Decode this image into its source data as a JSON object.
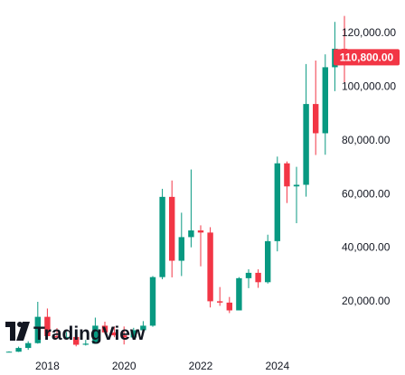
{
  "chart_data": {
    "type": "candlestick",
    "interval": "quarterly",
    "y_scale": "linear",
    "ylim": [
      0,
      127000
    ],
    "y_ticks": [
      20000,
      40000,
      60000,
      80000,
      100000,
      120000
    ],
    "y_tick_labels": [
      "20,000.00",
      "40,000.00",
      "60,000.00",
      "80,000.00",
      "100,000.00",
      "120,000.00"
    ],
    "x_ticks": [
      2018,
      2020,
      2022,
      2024
    ],
    "x_tick_labels": [
      "2018",
      "2020",
      "2022",
      "2024"
    ],
    "grid": false,
    "up_color": "#089981",
    "down_color": "#f23645",
    "last_price": 110800,
    "last_price_label": "110,800.00",
    "candles": [
      {
        "t": 2017.0,
        "o": 970,
        "h": 1250,
        "l": 900,
        "c": 1100
      },
      {
        "t": 2017.25,
        "o": 1100,
        "h": 3000,
        "l": 1000,
        "c": 2500
      },
      {
        "t": 2017.5,
        "o": 2500,
        "h": 5000,
        "l": 1800,
        "c": 4300
      },
      {
        "t": 2017.75,
        "o": 4300,
        "h": 19700,
        "l": 4100,
        "c": 14100
      },
      {
        "t": 2018.0,
        "o": 14100,
        "h": 17200,
        "l": 6000,
        "c": 6900
      },
      {
        "t": 2018.25,
        "o": 6900,
        "h": 9900,
        "l": 5800,
        "c": 6400
      },
      {
        "t": 2018.5,
        "o": 6400,
        "h": 8500,
        "l": 6000,
        "c": 6600
      },
      {
        "t": 2018.75,
        "o": 6600,
        "h": 6700,
        "l": 3100,
        "c": 3700
      },
      {
        "t": 2019.0,
        "o": 3700,
        "h": 5500,
        "l": 3400,
        "c": 4100
      },
      {
        "t": 2019.25,
        "o": 4100,
        "h": 13800,
        "l": 4100,
        "c": 10800
      },
      {
        "t": 2019.5,
        "o": 10800,
        "h": 12300,
        "l": 7700,
        "c": 8300
      },
      {
        "t": 2019.75,
        "o": 8300,
        "h": 10500,
        "l": 6500,
        "c": 7200
      },
      {
        "t": 2020.0,
        "o": 7200,
        "h": 10500,
        "l": 3800,
        "c": 6400
      },
      {
        "t": 2020.25,
        "o": 6400,
        "h": 10000,
        "l": 6300,
        "c": 9100
      },
      {
        "t": 2020.5,
        "o": 9100,
        "h": 12500,
        "l": 8900,
        "c": 10800
      },
      {
        "t": 2020.75,
        "o": 10800,
        "h": 29300,
        "l": 10400,
        "c": 28900
      },
      {
        "t": 2021.0,
        "o": 28900,
        "h": 61800,
        "l": 28100,
        "c": 58800
      },
      {
        "t": 2021.25,
        "o": 58800,
        "h": 64900,
        "l": 28800,
        "c": 35000
      },
      {
        "t": 2021.5,
        "o": 35000,
        "h": 52900,
        "l": 29300,
        "c": 43800
      },
      {
        "t": 2021.75,
        "o": 43800,
        "h": 69000,
        "l": 40000,
        "c": 46300
      },
      {
        "t": 2022.0,
        "o": 46300,
        "h": 48200,
        "l": 32900,
        "c": 45500
      },
      {
        "t": 2022.25,
        "o": 45500,
        "h": 47500,
        "l": 17600,
        "c": 19900
      },
      {
        "t": 2022.5,
        "o": 19900,
        "h": 25200,
        "l": 18200,
        "c": 19400
      },
      {
        "t": 2022.75,
        "o": 19400,
        "h": 21500,
        "l": 15500,
        "c": 16500
      },
      {
        "t": 2023.0,
        "o": 16500,
        "h": 28900,
        "l": 16500,
        "c": 28500
      },
      {
        "t": 2023.25,
        "o": 28500,
        "h": 31800,
        "l": 24800,
        "c": 30500
      },
      {
        "t": 2023.5,
        "o": 30500,
        "h": 31800,
        "l": 24900,
        "c": 27000
      },
      {
        "t": 2023.75,
        "o": 27000,
        "h": 44700,
        "l": 26500,
        "c": 42300
      },
      {
        "t": 2024.0,
        "o": 42300,
        "h": 73800,
        "l": 38500,
        "c": 71300
      },
      {
        "t": 2024.25,
        "o": 71300,
        "h": 72000,
        "l": 56500,
        "c": 62700
      },
      {
        "t": 2024.5,
        "o": 62700,
        "h": 70000,
        "l": 49000,
        "c": 63300
      },
      {
        "t": 2024.75,
        "o": 63300,
        "h": 108300,
        "l": 58900,
        "c": 93400
      },
      {
        "t": 2025.0,
        "o": 93400,
        "h": 109600,
        "l": 74400,
        "c": 82500
      },
      {
        "t": 2025.25,
        "o": 82500,
        "h": 111900,
        "l": 74500,
        "c": 107100
      },
      {
        "t": 2025.5,
        "o": 107100,
        "h": 124000,
        "l": 98200,
        "c": 114000
      },
      {
        "t": 2025.75,
        "o": 114000,
        "h": 126200,
        "l": 101500,
        "c": 110800
      }
    ]
  },
  "branding": {
    "logo_name": "tradingview-logo-icon",
    "text": "TradingView"
  }
}
